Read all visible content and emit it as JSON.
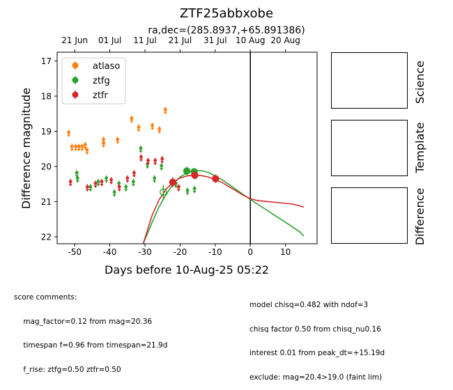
{
  "header": {
    "title": "ZTF25abbxobe",
    "subtitle": "ra,dec=(285.8937,+65.891386)"
  },
  "chart_data": {
    "type": "scatter",
    "xlabel": "Days before 10-Aug-25 05:22",
    "ylabel": "Difference magnitude",
    "xlim": [
      -55,
      19
    ],
    "ylim": [
      22.2,
      16.75
    ],
    "y_inverted": true,
    "x_ticks": [
      -50,
      -40,
      -30,
      -20,
      -10,
      0,
      10
    ],
    "y_ticks": [
      17,
      18,
      19,
      20,
      21,
      22
    ],
    "top_axis_ticks": [
      {
        "label": "21 Jun",
        "x": -50
      },
      {
        "label": "01 Jul",
        "x": -40
      },
      {
        "label": "11 Jul",
        "x": -30
      },
      {
        "label": "21 Jul",
        "x": -20
      },
      {
        "label": "31 Jul",
        "x": -10
      },
      {
        "label": "10 Aug",
        "x": 0
      },
      {
        "label": "20 Aug",
        "x": 10
      }
    ],
    "vline_x": 0,
    "legend_position": "top-left",
    "series": [
      {
        "name": "atlaso",
        "color": "#ff7f0e",
        "upper_limits": [
          [
            -51.7,
            19.05
          ],
          [
            -50.8,
            19.45
          ],
          [
            -49.7,
            19.45
          ],
          [
            -48.8,
            19.45
          ],
          [
            -47.9,
            19.45
          ],
          [
            -47.0,
            19.4
          ],
          [
            -46.5,
            19.55
          ],
          [
            -41.8,
            19.25
          ],
          [
            -41.8,
            19.35
          ],
          [
            -37.8,
            19.25
          ],
          [
            -33.8,
            18.65
          ],
          [
            -31.8,
            18.9
          ],
          [
            -27.9,
            18.85
          ],
          [
            -25.9,
            18.95
          ],
          [
            -24.2,
            18.4
          ]
        ],
        "detections": []
      },
      {
        "name": "ztfg",
        "color": "#2ca02c",
        "upper_limits": [
          [
            -49.4,
            20.2
          ],
          [
            -49.2,
            20.35
          ],
          [
            -45.5,
            20.6
          ],
          [
            -43.3,
            20.45
          ],
          [
            -41.0,
            20.35
          ],
          [
            -38.7,
            20.75
          ],
          [
            -37.4,
            20.5
          ],
          [
            -35.4,
            20.6
          ],
          [
            -33.3,
            20.45
          ],
          [
            -31.2,
            19.5
          ],
          [
            -29.3,
            19.95
          ],
          [
            -27.3,
            20.35
          ],
          [
            -25.3,
            20.0
          ],
          [
            -21.2,
            20.5
          ],
          [
            -17.9,
            20.7
          ],
          [
            -15.9,
            20.65
          ]
        ],
        "detections": [
          {
            "x": -24.8,
            "y": 20.73,
            "err": 0.2,
            "open": true
          },
          {
            "x": -18.1,
            "y": 20.13,
            "err": 0.12,
            "open": false
          },
          {
            "x": -16.0,
            "y": 20.15,
            "err": 0.1,
            "open": false
          }
        ]
      },
      {
        "name": "ztfr",
        "color": "#d62728",
        "upper_limits": [
          [
            -51.2,
            20.45
          ],
          [
            -46.4,
            20.6
          ],
          [
            -44.1,
            20.5
          ],
          [
            -42.3,
            20.45
          ],
          [
            -39.6,
            20.4
          ],
          [
            -37.3,
            20.6
          ],
          [
            -35.0,
            20.35
          ],
          [
            -33.1,
            20.2
          ],
          [
            -31.1,
            19.75
          ],
          [
            -29.1,
            19.85
          ],
          [
            -27.1,
            19.85
          ],
          [
            -25.1,
            19.8
          ],
          [
            -20.4,
            20.6
          ]
        ],
        "detections": [
          {
            "x": -22.1,
            "y": 20.45,
            "err": 0.15,
            "open": false
          },
          {
            "x": -15.8,
            "y": 20.25,
            "err": 0.12,
            "open": false
          },
          {
            "x": -9.9,
            "y": 20.35,
            "err": 0.12,
            "open": false
          }
        ]
      }
    ],
    "model_curves": [
      {
        "series": "ztfg",
        "color": "#2ca02c",
        "points": [
          [
            -30.5,
            22.2
          ],
          [
            -28,
            21.6
          ],
          [
            -26,
            21.15
          ],
          [
            -24,
            20.8
          ],
          [
            -22,
            20.5
          ],
          [
            -20,
            20.3
          ],
          [
            -18,
            20.18
          ],
          [
            -16,
            20.12
          ],
          [
            -14,
            20.12
          ],
          [
            -12,
            20.17
          ],
          [
            -10,
            20.27
          ],
          [
            -8,
            20.38
          ],
          [
            -6,
            20.52
          ],
          [
            -4,
            20.66
          ],
          [
            -2,
            20.8
          ],
          [
            0,
            20.94
          ],
          [
            2,
            21.07
          ],
          [
            4,
            21.2
          ],
          [
            6,
            21.33
          ],
          [
            8,
            21.46
          ],
          [
            10,
            21.59
          ],
          [
            12,
            21.72
          ],
          [
            14,
            21.86
          ],
          [
            15.2,
            21.98
          ]
        ]
      },
      {
        "series": "ztfr",
        "color": "#d62728",
        "points": [
          [
            -30.5,
            22.2
          ],
          [
            -28,
            21.4
          ],
          [
            -26,
            20.95
          ],
          [
            -24,
            20.65
          ],
          [
            -22,
            20.45
          ],
          [
            -20,
            20.33
          ],
          [
            -18,
            20.27
          ],
          [
            -16,
            20.25
          ],
          [
            -14,
            20.26
          ],
          [
            -12,
            20.3
          ],
          [
            -10,
            20.37
          ],
          [
            -8,
            20.46
          ],
          [
            -6,
            20.58
          ],
          [
            -4,
            20.7
          ],
          [
            -2,
            20.82
          ],
          [
            0,
            20.92
          ],
          [
            2,
            20.97
          ],
          [
            4,
            20.99
          ],
          [
            6,
            21.01
          ],
          [
            8,
            21.03
          ],
          [
            10,
            21.05
          ],
          [
            12,
            21.07
          ],
          [
            14,
            21.12
          ],
          [
            15.2,
            21.16
          ]
        ]
      }
    ]
  },
  "panels": [
    {
      "id": "science",
      "label": "Science"
    },
    {
      "id": "template",
      "label": "Template"
    },
    {
      "id": "difference",
      "label": "Difference"
    }
  ],
  "comments_left": [
    "score comments:",
    "    mag_factor=0.12 from mag=20.36",
    "    timespan f=0.96 from timespan=21.9d",
    "    f_rise: ztfg=0.50 ztfr=0.50"
  ],
  "comments_right": [
    "model chisq=0.482 with ndof=3",
    "chisq factor 0.50 from chisq_nu0.16",
    "interest 0.01 from peak_dt=+15.19d",
    "exclude: mag=20.4>19.0 (faint lim)"
  ]
}
